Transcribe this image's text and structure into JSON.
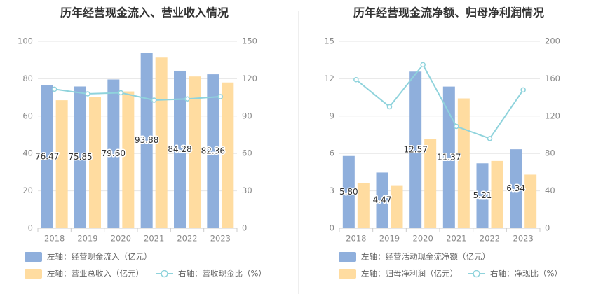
{
  "colors": {
    "bar_blue": "#8fafdc",
    "bar_yellow": "#ffdca0",
    "line": "#8fd3dc",
    "grid": "#e6e6e6",
    "axis_text": "#888888",
    "title": "#333333"
  },
  "chart_data": [
    {
      "type": "bar",
      "title": "历年经营现金流入、营业收入情况",
      "categories": [
        "2018",
        "2019",
        "2020",
        "2021",
        "2022",
        "2023"
      ],
      "y_left": {
        "ticks": [
          "0",
          "20",
          "40",
          "60",
          "80",
          "100"
        ],
        "range": [
          0,
          100
        ]
      },
      "y_right": {
        "ticks": [
          "0",
          "30",
          "60",
          "90",
          "120",
          "150"
        ],
        "range": [
          0,
          150
        ]
      },
      "series": [
        {
          "name": "左轴：经营现金流入（亿元）",
          "kind": "bar",
          "axis": "left",
          "color": "#8fafdc",
          "values": [
            76.47,
            75.85,
            79.6,
            93.88,
            84.28,
            82.36
          ],
          "labels": [
            "76.47",
            "75.85",
            "79.60",
            "93.88",
            "84.28",
            "82.36"
          ]
        },
        {
          "name": "左轴：营业总收入（亿元）",
          "kind": "bar",
          "axis": "left",
          "color": "#ffdca0",
          "values": [
            68.5,
            70.3,
            73.2,
            91.3,
            81.2,
            78.0
          ]
        },
        {
          "name": "右轴：营收现金比（%）",
          "kind": "line",
          "axis": "right",
          "color": "#8fd3dc",
          "values": [
            111.6,
            107.9,
            108.7,
            102.8,
            103.8,
            105.6
          ]
        }
      ]
    },
    {
      "type": "bar",
      "title": "历年经营现金流净额、归母净利润情况",
      "categories": [
        "2018",
        "2019",
        "2020",
        "2021",
        "2022",
        "2023"
      ],
      "y_left": {
        "ticks": [
          "0",
          "3",
          "6",
          "9",
          "12",
          "15"
        ],
        "range": [
          0,
          15
        ]
      },
      "y_right": {
        "ticks": [
          "0",
          "40",
          "80",
          "120",
          "160",
          "200"
        ],
        "range": [
          0,
          200
        ]
      },
      "series": [
        {
          "name": "左轴：经营活动现金流净额（亿元）",
          "kind": "bar",
          "axis": "left",
          "color": "#8fafdc",
          "values": [
            5.8,
            4.47,
            12.57,
            11.37,
            5.21,
            6.34
          ],
          "labels": [
            "5.80",
            "4.47",
            "12.57",
            "11.37",
            "5.21",
            "6.34"
          ]
        },
        {
          "name": "左轴：归母净利润（亿元）",
          "kind": "bar",
          "axis": "left",
          "color": "#ffdca0",
          "values": [
            3.65,
            3.45,
            7.15,
            10.42,
            5.4,
            4.3
          ]
        },
        {
          "name": "右轴：净现比（%）",
          "kind": "line",
          "axis": "right",
          "color": "#8fd3dc",
          "values": [
            159,
            130,
            175,
            109,
            96,
            148
          ]
        }
      ]
    }
  ]
}
